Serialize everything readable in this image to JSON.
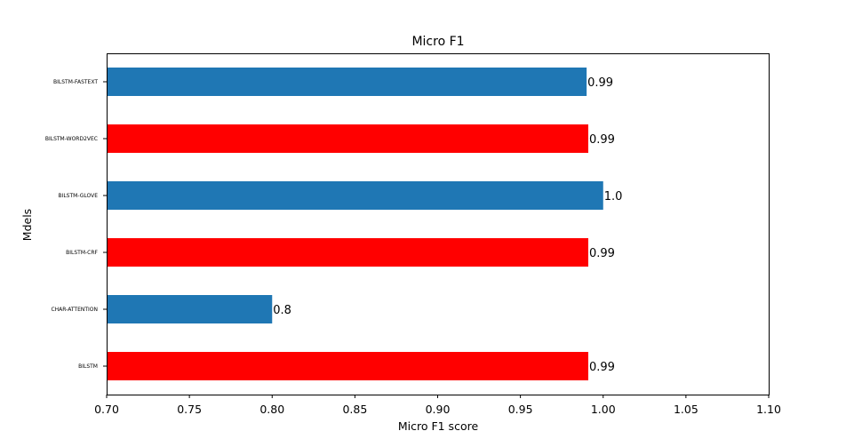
{
  "chart_data": {
    "type": "bar",
    "orientation": "horizontal",
    "title": "Micro F1",
    "xlabel": "Micro F1 score",
    "ylabel": "Mdels",
    "xlim": [
      0.7,
      1.1
    ],
    "xticks": [
      "0.70",
      "0.75",
      "0.80",
      "0.85",
      "0.90",
      "0.95",
      "1.00",
      "1.05",
      "1.10"
    ],
    "grid": false,
    "legend": "none",
    "categories": [
      "BILSTM-FASTEXT",
      "BILSTM-WORD2VEC",
      "BILSTM-GLOVE",
      "BILSTM-CRF",
      "CHAR-ATTENTION",
      "BILSTM"
    ],
    "values": [
      0.99,
      0.991,
      1.0,
      0.991,
      0.8,
      0.991
    ],
    "data_labels": [
      "0.99",
      "0.99",
      "1.0",
      "0.99",
      "0.8",
      "0.99"
    ],
    "bar_colors": [
      "#1f77b4",
      "#ff0000",
      "#1f77b4",
      "#ff0000",
      "#1f77b4",
      "#ff0000"
    ]
  }
}
